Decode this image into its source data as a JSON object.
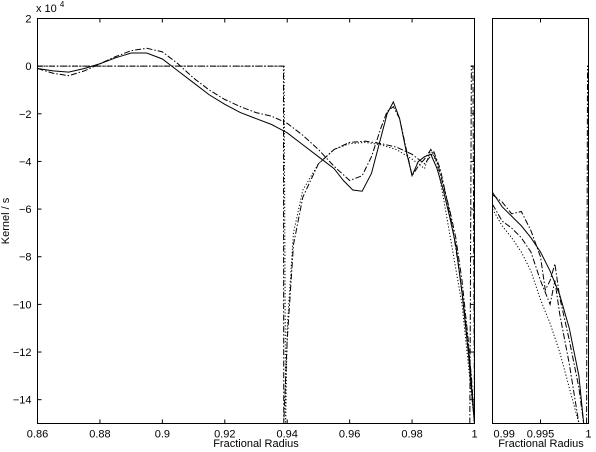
{
  "chart_data": [
    {
      "type": "line",
      "title": "",
      "xlabel": "Fractional Radius",
      "ylabel": "Kernel / s",
      "y_multiplier_label": "x 10",
      "y_multiplier_exponent": "4",
      "xlim": [
        0.86,
        1.0
      ],
      "ylim": [
        -15,
        2
      ],
      "x_ticks": [
        0.86,
        0.88,
        0.9,
        0.92,
        0.94,
        0.96,
        0.98,
        1.0
      ],
      "x_tick_labels": [
        "0.86",
        "0.88",
        "0.9",
        "0.92",
        "0.94",
        "0.96",
        "0.98",
        "1"
      ],
      "y_ticks": [
        2,
        0,
        -2,
        -4,
        -6,
        -8,
        -10,
        -12,
        -14
      ],
      "y_tick_labels": [
        "2",
        "0",
        "−2",
        "−4",
        "−6",
        "−8",
        "−10",
        "−12",
        "−14"
      ],
      "grid": false,
      "series": [
        {
          "style": "solid",
          "x": [
            0.86,
            0.865,
            0.87,
            0.875,
            0.88,
            0.885,
            0.89,
            0.895,
            0.9,
            0.905,
            0.91,
            0.915,
            0.92,
            0.925,
            0.93,
            0.935,
            0.94,
            0.945,
            0.95,
            0.955,
            0.958,
            0.961,
            0.964,
            0.967,
            0.97,
            0.972,
            0.974,
            0.976,
            0.978,
            0.98,
            0.982,
            0.984,
            0.986,
            0.988,
            0.99,
            0.992,
            0.994,
            0.996,
            0.998,
            1.0
          ],
          "y": [
            -0.1,
            -0.2,
            -0.25,
            -0.1,
            0.1,
            0.35,
            0.55,
            0.55,
            0.3,
            -0.2,
            -0.7,
            -1.2,
            -1.6,
            -1.95,
            -2.2,
            -2.45,
            -2.8,
            -3.3,
            -3.8,
            -4.3,
            -4.8,
            -5.2,
            -5.25,
            -4.5,
            -3.0,
            -2.0,
            -1.5,
            -2.2,
            -3.5,
            -4.6,
            -4.0,
            -3.8,
            -3.7,
            -4.3,
            -5.2,
            -6.3,
            -7.5,
            -9.5,
            -12.0,
            -15.0
          ]
        },
        {
          "style": "dashdot",
          "x": [
            0.86,
            0.865,
            0.87,
            0.875,
            0.88,
            0.885,
            0.89,
            0.895,
            0.9,
            0.905,
            0.91,
            0.915,
            0.92,
            0.925,
            0.93,
            0.935,
            0.94,
            0.945,
            0.95,
            0.955,
            0.96,
            0.964,
            0.967,
            0.97,
            0.972,
            0.974,
            0.976,
            0.978,
            0.98,
            0.982,
            0.984,
            0.986,
            0.988,
            0.99,
            0.992,
            0.994,
            0.996,
            0.998,
            1.0
          ],
          "y": [
            -0.1,
            -0.3,
            -0.4,
            -0.2,
            0.1,
            0.4,
            0.65,
            0.75,
            0.6,
            0.1,
            -0.5,
            -1.0,
            -1.4,
            -1.7,
            -1.95,
            -2.1,
            -2.4,
            -2.9,
            -3.5,
            -4.2,
            -4.8,
            -4.6,
            -3.8,
            -2.6,
            -1.9,
            -1.7,
            -2.2,
            -3.4,
            -4.6,
            -4.2,
            -3.9,
            -3.5,
            -4.0,
            -5.0,
            -6.0,
            -7.2,
            -9.0,
            -11.5,
            -15.0
          ]
        },
        {
          "style": "dotted",
          "x": [
            0.86,
            0.937,
            0.939,
            0.9395,
            0.94,
            0.942,
            0.945,
            0.95,
            0.955,
            0.96,
            0.965,
            0.97,
            0.975,
            0.98,
            0.984,
            0.986,
            0.988,
            0.99,
            0.992,
            0.994,
            0.996,
            0.998,
            1.0
          ],
          "y": [
            0.0,
            0.0,
            0.0,
            -15.0,
            -11.0,
            -7.0,
            -5.2,
            -4.1,
            -3.5,
            -3.25,
            -3.2,
            -3.3,
            -3.5,
            -3.9,
            -4.3,
            -3.5,
            -4.1,
            -5.5,
            -7.0,
            -8.5,
            -10.0,
            -12.5,
            -15.0
          ]
        },
        {
          "style": "dashdot",
          "x": [
            0.86,
            0.9388,
            0.9389,
            0.94,
            0.942,
            0.945,
            0.95,
            0.955,
            0.96,
            0.965,
            0.97,
            0.975,
            0.98,
            0.984,
            0.987,
            0.989,
            0.991,
            0.993,
            0.995,
            0.997,
            0.999,
            1.0
          ],
          "y": [
            0.0,
            0.0,
            -15.0,
            -11.5,
            -7.5,
            -5.5,
            -4.1,
            -3.5,
            -3.2,
            -3.15,
            -3.25,
            -3.4,
            -3.7,
            -4.1,
            -3.6,
            -4.3,
            -5.5,
            -6.8,
            -8.5,
            -10.5,
            -13.0,
            -15.0
          ]
        },
        {
          "style": "dashdot",
          "x": [
            0.9985,
            0.999,
            0.9995,
            1.0
          ],
          "y": [
            -15.0,
            0.0,
            0.0,
            -15.0
          ]
        }
      ]
    },
    {
      "type": "line",
      "title": "",
      "xlabel": "Fractional Radius",
      "ylabel": "",
      "xlim": [
        0.99,
        1.0
      ],
      "ylim": [
        -15,
        2
      ],
      "x_ticks": [
        0.99,
        0.995,
        1.0
      ],
      "x_tick_labels": [
        "0.99",
        "0.995",
        "1"
      ],
      "y_tick_labels": [],
      "grid": false,
      "series": [
        {
          "style": "solid",
          "x": [
            0.99,
            0.991,
            0.992,
            0.993,
            0.994,
            0.995,
            0.996,
            0.997,
            0.998,
            0.999,
            0.9995
          ],
          "y": [
            -5.3,
            -5.9,
            -6.3,
            -6.7,
            -7.2,
            -7.8,
            -8.6,
            -9.6,
            -11.0,
            -13.0,
            -15.0
          ]
        },
        {
          "style": "dashdot",
          "x": [
            0.99,
            0.991,
            0.992,
            0.993,
            0.994,
            0.995,
            0.9955,
            0.996,
            0.9965,
            0.997,
            0.998,
            0.999,
            0.9995
          ],
          "y": [
            -5.4,
            -5.7,
            -6.2,
            -6.1,
            -6.9,
            -8.0,
            -9.4,
            -9.0,
            -8.3,
            -9.7,
            -11.5,
            -13.5,
            -15.0
          ]
        },
        {
          "style": "dotted",
          "x": [
            0.99,
            0.991,
            0.992,
            0.993,
            0.994,
            0.995,
            0.996,
            0.997,
            0.998,
            0.999
          ],
          "y": [
            -6.0,
            -6.7,
            -7.2,
            -7.8,
            -8.6,
            -9.8,
            -10.8,
            -12.0,
            -13.5,
            -15.0
          ]
        },
        {
          "style": "dashdot",
          "x": [
            0.99,
            0.991,
            0.992,
            0.993,
            0.994,
            0.995,
            0.996,
            0.9965,
            0.997,
            0.998,
            0.999
          ],
          "y": [
            -5.8,
            -6.5,
            -6.8,
            -7.2,
            -7.8,
            -9.0,
            -10.0,
            -9.0,
            -10.4,
            -12.5,
            -15.0
          ]
        },
        {
          "style": "dashdot",
          "x": [
            0.9998,
            0.9999,
            1.0
          ],
          "y": [
            -15.0,
            0.0,
            0.0
          ]
        }
      ]
    }
  ]
}
